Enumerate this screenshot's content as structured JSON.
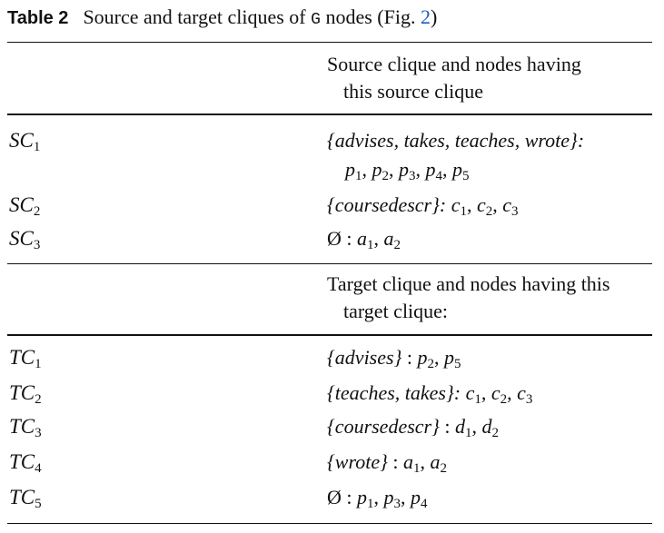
{
  "caption": {
    "label": "Table 2",
    "text_before": "Source and target cliques of",
    "graph_symbol": "G",
    "text_after": "nodes (Fig.",
    "fig_ref": "2",
    "close": ")"
  },
  "source_header": {
    "line1": "Source clique and nodes having",
    "line2": "this source clique"
  },
  "source_rows": [
    {
      "label": "SC",
      "label_sub": "1",
      "set": "{advises, takes, teaches, wrote}:",
      "nodes": [
        [
          "p",
          "1"
        ],
        [
          "p",
          "2"
        ],
        [
          "p",
          "3"
        ],
        [
          "p",
          "4"
        ],
        [
          "p",
          "5"
        ]
      ],
      "sep": ""
    },
    {
      "label": "SC",
      "label_sub": "2",
      "set": "{coursedescr}:",
      "nodes": [
        [
          "c",
          "1"
        ],
        [
          "c",
          "2"
        ],
        [
          "c",
          "3"
        ]
      ],
      "sep": ""
    },
    {
      "label": "SC",
      "label_sub": "3",
      "set": "Ø",
      "nodes": [
        [
          "a",
          "1"
        ],
        [
          "a",
          "2"
        ]
      ],
      "sep": " : "
    }
  ],
  "target_header": {
    "line1": "Target clique and nodes having this",
    "line2": "target clique:"
  },
  "target_rows": [
    {
      "label": "TC",
      "label_sub": "1",
      "set": "{advises}",
      "nodes": [
        [
          "p",
          "2"
        ],
        [
          "p",
          "5"
        ]
      ],
      "sep": " : "
    },
    {
      "label": "TC",
      "label_sub": "2",
      "set": "{teaches, takes}:",
      "nodes": [
        [
          "c",
          "1"
        ],
        [
          "c",
          "2"
        ],
        [
          "c",
          "3"
        ]
      ],
      "sep": ""
    },
    {
      "label": "TC",
      "label_sub": "3",
      "set": "{coursedescr}",
      "nodes": [
        [
          "d",
          "1"
        ],
        [
          "d",
          "2"
        ]
      ],
      "sep": " : "
    },
    {
      "label": "TC",
      "label_sub": "4",
      "set": "{wrote}",
      "nodes": [
        [
          "a",
          "1"
        ],
        [
          "a",
          "2"
        ]
      ],
      "sep": " : "
    },
    {
      "label": "TC",
      "label_sub": "5",
      "set": "Ø",
      "nodes": [
        [
          "p",
          "1"
        ],
        [
          "p",
          "3"
        ],
        [
          "p",
          "4"
        ]
      ],
      "sep": " : "
    }
  ]
}
